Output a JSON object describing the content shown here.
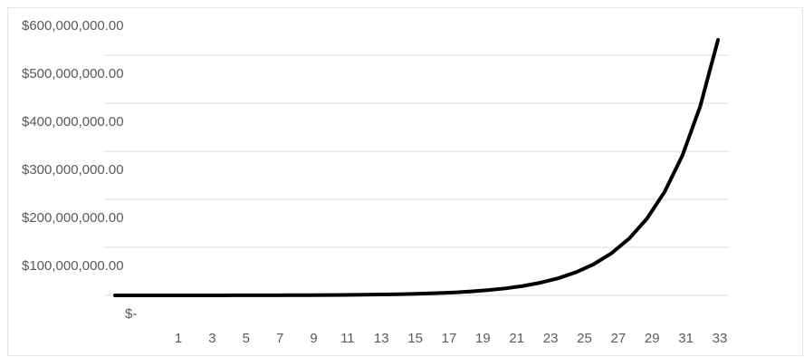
{
  "chart_data": {
    "type": "line",
    "categories": [
      1,
      null,
      3,
      null,
      5,
      null,
      7,
      null,
      9,
      null,
      11,
      null,
      13,
      null,
      15,
      null,
      17,
      null,
      19,
      null,
      21,
      null,
      23,
      null,
      25,
      null,
      27,
      null,
      29,
      null,
      31,
      null,
      33,
      null,
      null
    ],
    "series": [
      {
        "color": "#000000",
        "values": [
          19700,
          26595,
          35903,
          48469,
          65433,
          88335,
          119252,
          160990,
          217337,
          293405,
          396097,
          534731,
          721887,
          974547,
          1315638,
          1776111,
          2397750,
          3236963,
          4369900,
          5899365,
          7964143,
          10751593,
          14514651,
          19594779,
          26452952,
          35711485,
          48210505,
          65084182,
          87863646,
          118615922,
          160131495,
          216177518,
          291839649,
          393983526,
          531877760
        ]
      }
    ],
    "ylim": [
      0,
      600000000
    ],
    "yticks": [
      {
        "value": 0,
        "label": "$-"
      },
      {
        "value": 100000000,
        "label": "$100,000,000.00"
      },
      {
        "value": 200000000,
        "label": "$200,000,000.00"
      },
      {
        "value": 300000000,
        "label": "$300,000,000.00"
      },
      {
        "value": 400000000,
        "label": "$400,000,000.00"
      },
      {
        "value": 500000000,
        "label": "$500,000,000.00"
      },
      {
        "value": 600000000,
        "label": "$600,000,000.00"
      }
    ],
    "grid": true
  }
}
